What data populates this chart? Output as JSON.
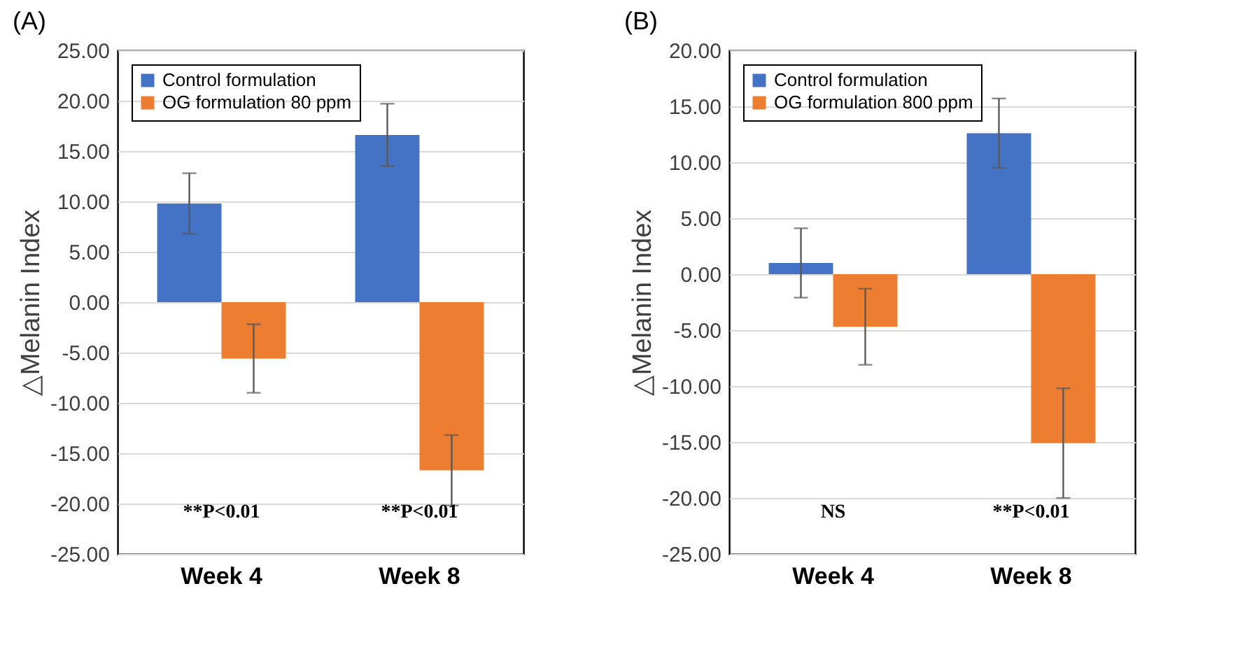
{
  "chart_data": [
    {
      "type": "bar",
      "title": "(A)",
      "ylabel": "△Melanin Index",
      "categories": [
        "Week 4",
        "Week 8"
      ],
      "series": [
        {
          "name": "Control formulation",
          "color": "#4472c4",
          "values": [
            9.8,
            16.6
          ],
          "errors": [
            3.0,
            3.1
          ]
        },
        {
          "name": "OG formulation 80 ppm",
          "color": "#ed7d31",
          "values": [
            -5.6,
            -16.7
          ],
          "errors": [
            3.4,
            3.5
          ]
        }
      ],
      "ylim": [
        -25,
        25
      ],
      "yticks": [
        {
          "value": -25,
          "label": "-25.00"
        },
        {
          "value": -20,
          "label": "-20.00"
        },
        {
          "value": -15,
          "label": "-15.00"
        },
        {
          "value": -10,
          "label": "-10.00"
        },
        {
          "value": -5,
          "label": "-5.00"
        },
        {
          "value": 0,
          "label": "0.00"
        },
        {
          "value": 5,
          "label": "5.00"
        },
        {
          "value": 10,
          "label": "10.00"
        },
        {
          "value": 15,
          "label": "15.00"
        },
        {
          "value": 20,
          "label": "20.00"
        },
        {
          "value": 25,
          "label": "25.00"
        }
      ],
      "grid": "y",
      "legend": "top left",
      "annotations": [
        "**P<0.01",
        "**P<0.01"
      ]
    },
    {
      "type": "bar",
      "title": "(B)",
      "ylabel": "△Melanin Index",
      "categories": [
        "Week 4",
        "Week 8"
      ],
      "series": [
        {
          "name": "Control formulation",
          "color": "#4472c4",
          "values": [
            1.0,
            12.6
          ],
          "errors": [
            3.1,
            3.1
          ]
        },
        {
          "name": "OG formulation 800 ppm",
          "color": "#ed7d31",
          "values": [
            -4.7,
            -15.1
          ],
          "errors": [
            3.4,
            4.9
          ]
        }
      ],
      "ylim": [
        -25,
        20
      ],
      "yticks": [
        {
          "value": -25,
          "label": "-25.00"
        },
        {
          "value": -20,
          "label": "-20.00"
        },
        {
          "value": -15,
          "label": "-15.00"
        },
        {
          "value": -10,
          "label": "-10.00"
        },
        {
          "value": -5,
          "label": "-5.00"
        },
        {
          "value": 0,
          "label": "0.00"
        },
        {
          "value": 5,
          "label": "5.00"
        },
        {
          "value": 10,
          "label": "10.00"
        },
        {
          "value": 15,
          "label": "15.00"
        },
        {
          "value": 20,
          "label": "20.00"
        }
      ],
      "grid": "y",
      "legend": "top left",
      "annotations": [
        "NS",
        "**P<0.01"
      ]
    }
  ]
}
